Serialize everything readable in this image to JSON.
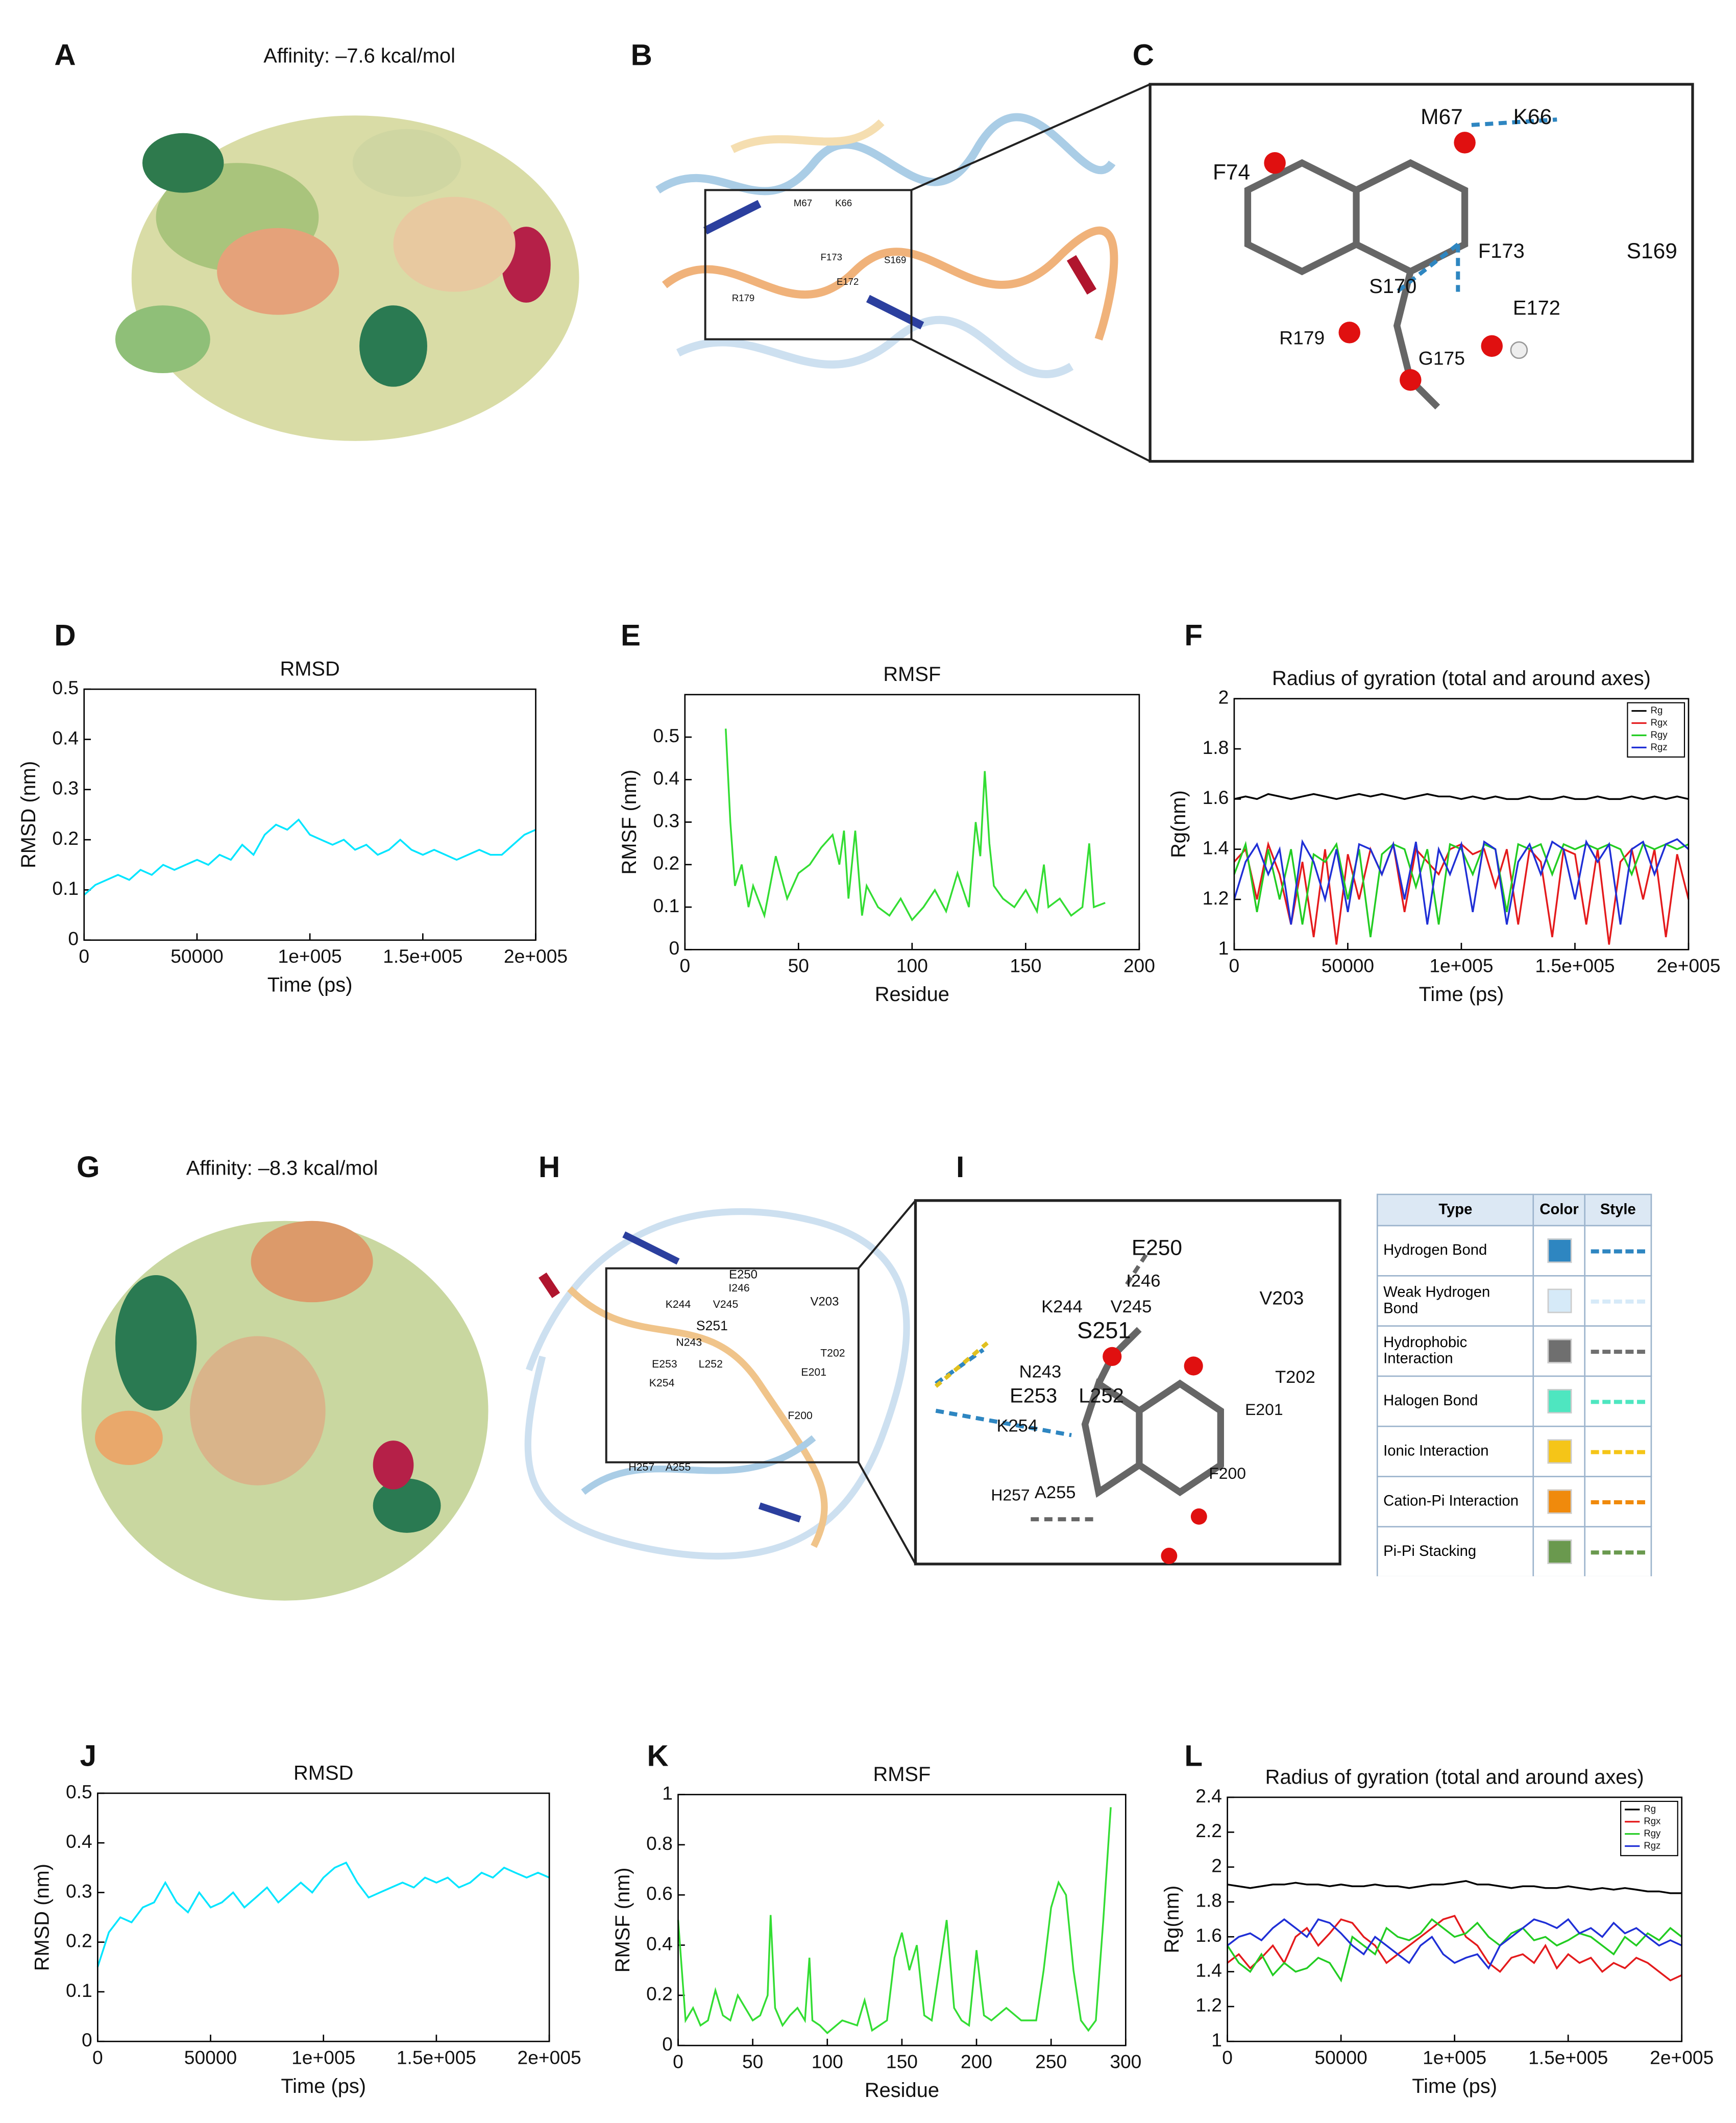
{
  "chart_data": [
    {
      "type": "line",
      "panel": "D",
      "title": "RMSD",
      "xlabel": "Time (ps)",
      "ylabel": "RMSD (nm)",
      "x": [
        0,
        5000,
        10000,
        15000,
        20000,
        25000,
        30000,
        35000,
        40000,
        45000,
        50000,
        55000,
        60000,
        65000,
        70000,
        75000,
        80000,
        85000,
        90000,
        95000,
        100000,
        105000,
        110000,
        115000,
        120000,
        125000,
        130000,
        135000,
        140000,
        145000,
        150000,
        155000,
        160000,
        165000,
        170000,
        175000,
        180000,
        185000,
        190000,
        195000,
        200000
      ],
      "xlim": [
        0,
        200000
      ],
      "xticks": [
        0,
        50000,
        {
          "value": 100000,
          "label": "1e+005"
        },
        {
          "value": 150000,
          "label": "1.5e+005"
        },
        {
          "value": 200000,
          "label": "2e+005"
        }
      ],
      "ylim": [
        0,
        0.5
      ],
      "yticks": [
        0,
        0.1,
        0.2,
        0.3,
        0.4,
        0.5
      ],
      "series": [
        {
          "color": "#00e5ff",
          "values": [
            0.09,
            0.11,
            0.12,
            0.13,
            0.12,
            0.14,
            0.13,
            0.15,
            0.14,
            0.15,
            0.16,
            0.15,
            0.17,
            0.16,
            0.19,
            0.17,
            0.21,
            0.23,
            0.22,
            0.24,
            0.21,
            0.2,
            0.19,
            0.2,
            0.18,
            0.19,
            0.17,
            0.18,
            0.2,
            0.18,
            0.17,
            0.18,
            0.17,
            0.16,
            0.17,
            0.18,
            0.17,
            0.17,
            0.19,
            0.21,
            0.22
          ]
        }
      ]
    },
    {
      "type": "line",
      "panel": "E",
      "title": "RMSF",
      "xlabel": "Residue",
      "ylabel": "RMSF (nm)",
      "x": [
        18,
        20,
        22,
        25,
        28,
        30,
        35,
        40,
        45,
        50,
        55,
        60,
        65,
        68,
        70,
        72,
        75,
        78,
        80,
        85,
        90,
        95,
        100,
        105,
        110,
        115,
        120,
        125,
        128,
        130,
        132,
        134,
        136,
        140,
        145,
        150,
        155,
        158,
        160,
        165,
        170,
        175,
        178,
        180,
        185
      ],
      "xlim": [
        0,
        200
      ],
      "xticks": [
        0,
        50,
        100,
        150,
        200
      ],
      "ylim": [
        0,
        0.6
      ],
      "yticks": [
        0,
        0.1,
        0.2,
        0.3,
        0.4,
        0.5
      ],
      "series": [
        {
          "color": "#33dd33",
          "values": [
            0.52,
            0.3,
            0.15,
            0.2,
            0.1,
            0.15,
            0.08,
            0.22,
            0.12,
            0.18,
            0.2,
            0.24,
            0.27,
            0.2,
            0.28,
            0.12,
            0.28,
            0.08,
            0.15,
            0.1,
            0.08,
            0.12,
            0.07,
            0.1,
            0.14,
            0.09,
            0.18,
            0.1,
            0.3,
            0.22,
            0.42,
            0.25,
            0.15,
            0.12,
            0.1,
            0.14,
            0.09,
            0.2,
            0.1,
            0.12,
            0.08,
            0.1,
            0.25,
            0.1,
            0.11
          ]
        }
      ]
    },
    {
      "type": "line",
      "panel": "F",
      "title": "Radius of gyration (total and around axes)",
      "xlabel": "Time (ps)",
      "ylabel": "Rg(nm)",
      "x": [
        0,
        5000,
        10000,
        15000,
        20000,
        25000,
        30000,
        35000,
        40000,
        45000,
        50000,
        55000,
        60000,
        65000,
        70000,
        75000,
        80000,
        85000,
        90000,
        95000,
        100000,
        105000,
        110000,
        115000,
        120000,
        125000,
        130000,
        135000,
        140000,
        145000,
        150000,
        155000,
        160000,
        165000,
        170000,
        175000,
        180000,
        185000,
        190000,
        195000,
        200000
      ],
      "xlim": [
        0,
        200000
      ],
      "xticks": [
        0,
        50000,
        {
          "value": 100000,
          "label": "1e+005"
        },
        {
          "value": 150000,
          "label": "1.5e+005"
        },
        {
          "value": 200000,
          "label": "2e+005"
        }
      ],
      "ylim": [
        1,
        2
      ],
      "yticks": [
        1,
        1.2,
        1.4,
        1.6,
        1.8,
        2
      ],
      "legend": "upper right",
      "series": [
        {
          "name": "Rg",
          "color": "#000000",
          "values": [
            1.6,
            1.61,
            1.6,
            1.62,
            1.61,
            1.6,
            1.61,
            1.62,
            1.61,
            1.6,
            1.61,
            1.62,
            1.61,
            1.62,
            1.61,
            1.6,
            1.61,
            1.62,
            1.61,
            1.61,
            1.6,
            1.61,
            1.6,
            1.61,
            1.6,
            1.6,
            1.61,
            1.6,
            1.6,
            1.61,
            1.6,
            1.6,
            1.61,
            1.6,
            1.6,
            1.61,
            1.6,
            1.61,
            1.6,
            1.61,
            1.6
          ]
        },
        {
          "name": "Rgx",
          "color": "#e41a1c",
          "values": [
            1.35,
            1.4,
            1.2,
            1.42,
            1.3,
            1.1,
            1.35,
            1.05,
            1.4,
            1.02,
            1.38,
            1.2,
            1.4,
            1.3,
            1.42,
            1.15,
            1.4,
            1.35,
            1.3,
            1.4,
            1.42,
            1.38,
            1.4,
            1.25,
            1.4,
            1.1,
            1.4,
            1.35,
            1.05,
            1.4,
            1.38,
            1.1,
            1.4,
            1.02,
            1.35,
            1.4,
            1.2,
            1.4,
            1.05,
            1.38,
            1.2
          ]
        },
        {
          "name": "Rgy",
          "color": "#22cc22",
          "values": [
            1.3,
            1.42,
            1.15,
            1.4,
            1.2,
            1.4,
            1.1,
            1.38,
            1.35,
            1.42,
            1.2,
            1.4,
            1.05,
            1.38,
            1.42,
            1.4,
            1.25,
            1.4,
            1.1,
            1.42,
            1.4,
            1.3,
            1.42,
            1.4,
            1.15,
            1.42,
            1.4,
            1.42,
            1.3,
            1.42,
            1.4,
            1.42,
            1.4,
            1.42,
            1.4,
            1.3,
            1.42,
            1.4,
            1.42,
            1.4,
            1.42
          ]
        },
        {
          "name": "Rgz",
          "color": "#1f2fd6",
          "values": [
            1.2,
            1.35,
            1.42,
            1.3,
            1.4,
            1.1,
            1.43,
            1.35,
            1.2,
            1.4,
            1.15,
            1.42,
            1.4,
            1.3,
            1.42,
            1.2,
            1.43,
            1.1,
            1.4,
            1.3,
            1.42,
            1.15,
            1.43,
            1.4,
            1.1,
            1.35,
            1.42,
            1.3,
            1.43,
            1.4,
            1.2,
            1.43,
            1.35,
            1.42,
            1.1,
            1.4,
            1.43,
            1.3,
            1.42,
            1.44,
            1.4
          ]
        }
      ]
    },
    {
      "type": "line",
      "panel": "J",
      "title": "RMSD",
      "xlabel": "Time (ps)",
      "ylabel": "RMSD (nm)",
      "x": [
        0,
        5000,
        10000,
        15000,
        20000,
        25000,
        30000,
        35000,
        40000,
        45000,
        50000,
        55000,
        60000,
        65000,
        70000,
        75000,
        80000,
        85000,
        90000,
        95000,
        100000,
        105000,
        110000,
        115000,
        120000,
        125000,
        130000,
        135000,
        140000,
        145000,
        150000,
        155000,
        160000,
        165000,
        170000,
        175000,
        180000,
        185000,
        190000,
        195000,
        200000
      ],
      "xlim": [
        0,
        200000
      ],
      "xticks": [
        0,
        50000,
        {
          "value": 100000,
          "label": "1e+005"
        },
        {
          "value": 150000,
          "label": "1.5e+005"
        },
        {
          "value": 200000,
          "label": "2e+005"
        }
      ],
      "ylim": [
        0,
        0.5
      ],
      "yticks": [
        0,
        0.1,
        0.2,
        0.3,
        0.4,
        0.5
      ],
      "series": [
        {
          "color": "#00e5ff",
          "values": [
            0.15,
            0.22,
            0.25,
            0.24,
            0.27,
            0.28,
            0.32,
            0.28,
            0.26,
            0.3,
            0.27,
            0.28,
            0.3,
            0.27,
            0.29,
            0.31,
            0.28,
            0.3,
            0.32,
            0.3,
            0.33,
            0.35,
            0.36,
            0.32,
            0.29,
            0.3,
            0.31,
            0.32,
            0.31,
            0.33,
            0.32,
            0.33,
            0.31,
            0.32,
            0.34,
            0.33,
            0.35,
            0.34,
            0.33,
            0.34,
            0.33
          ]
        }
      ]
    },
    {
      "type": "line",
      "panel": "K",
      "title": "RMSF",
      "xlabel": "Residue",
      "ylabel": "RMSF (nm)",
      "x": [
        0,
        5,
        10,
        15,
        20,
        25,
        30,
        35,
        40,
        45,
        50,
        55,
        60,
        62,
        65,
        70,
        75,
        80,
        85,
        88,
        90,
        95,
        100,
        110,
        120,
        125,
        130,
        140,
        145,
        150,
        155,
        160,
        165,
        170,
        175,
        180,
        185,
        190,
        195,
        200,
        205,
        210,
        220,
        230,
        240,
        245,
        250,
        255,
        260,
        265,
        270,
        275,
        280,
        285,
        290
      ],
      "xlim": [
        0,
        300
      ],
      "xticks": [
        0,
        50,
        100,
        150,
        200,
        250,
        300
      ],
      "ylim": [
        0,
        1
      ],
      "yticks": [
        0,
        0.2,
        0.4,
        0.6,
        0.8,
        1
      ],
      "series": [
        {
          "color": "#33dd33",
          "values": [
            0.5,
            0.1,
            0.15,
            0.08,
            0.1,
            0.22,
            0.12,
            0.1,
            0.2,
            0.15,
            0.1,
            0.12,
            0.2,
            0.52,
            0.15,
            0.08,
            0.12,
            0.15,
            0.1,
            0.35,
            0.1,
            0.08,
            0.05,
            0.1,
            0.08,
            0.18,
            0.06,
            0.1,
            0.35,
            0.45,
            0.3,
            0.4,
            0.12,
            0.1,
            0.3,
            0.5,
            0.15,
            0.1,
            0.08,
            0.38,
            0.12,
            0.1,
            0.15,
            0.1,
            0.1,
            0.3,
            0.55,
            0.65,
            0.6,
            0.3,
            0.1,
            0.06,
            0.1,
            0.5,
            0.95
          ]
        }
      ]
    },
    {
      "type": "line",
      "panel": "L",
      "title": "Radius of gyration (total and around axes)",
      "xlabel": "Time (ps)",
      "ylabel": "Rg(nm)",
      "x": [
        0,
        5000,
        10000,
        15000,
        20000,
        25000,
        30000,
        35000,
        40000,
        45000,
        50000,
        55000,
        60000,
        65000,
        70000,
        75000,
        80000,
        85000,
        90000,
        95000,
        100000,
        105000,
        110000,
        115000,
        120000,
        125000,
        130000,
        135000,
        140000,
        145000,
        150000,
        155000,
        160000,
        165000,
        170000,
        175000,
        180000,
        185000,
        190000,
        195000,
        200000
      ],
      "xlim": [
        0,
        200000
      ],
      "xticks": [
        0,
        50000,
        {
          "value": 100000,
          "label": "1e+005"
        },
        {
          "value": 150000,
          "label": "1.5e+005"
        },
        {
          "value": 200000,
          "label": "2e+005"
        }
      ],
      "ylim": [
        1,
        2.4
      ],
      "yticks": [
        1,
        1.2,
        1.4,
        1.6,
        1.8,
        2,
        2.2,
        2.4
      ],
      "legend": "upper right",
      "series": [
        {
          "name": "Rg",
          "color": "#000000",
          "values": [
            1.9,
            1.89,
            1.88,
            1.89,
            1.9,
            1.9,
            1.91,
            1.9,
            1.9,
            1.89,
            1.9,
            1.89,
            1.89,
            1.9,
            1.89,
            1.89,
            1.88,
            1.89,
            1.9,
            1.9,
            1.91,
            1.92,
            1.9,
            1.9,
            1.89,
            1.88,
            1.89,
            1.89,
            1.88,
            1.88,
            1.89,
            1.88,
            1.87,
            1.88,
            1.87,
            1.88,
            1.87,
            1.86,
            1.86,
            1.85,
            1.85
          ]
        },
        {
          "name": "Rgx",
          "color": "#e41a1c",
          "values": [
            1.45,
            1.5,
            1.42,
            1.48,
            1.55,
            1.45,
            1.6,
            1.65,
            1.55,
            1.62,
            1.7,
            1.68,
            1.6,
            1.55,
            1.45,
            1.5,
            1.55,
            1.6,
            1.65,
            1.7,
            1.72,
            1.6,
            1.55,
            1.45,
            1.4,
            1.48,
            1.5,
            1.45,
            1.55,
            1.42,
            1.5,
            1.45,
            1.48,
            1.4,
            1.45,
            1.42,
            1.48,
            1.45,
            1.4,
            1.35,
            1.38
          ]
        },
        {
          "name": "Rgy",
          "color": "#22cc22",
          "values": [
            1.55,
            1.45,
            1.4,
            1.5,
            1.38,
            1.45,
            1.4,
            1.42,
            1.48,
            1.45,
            1.35,
            1.6,
            1.55,
            1.5,
            1.65,
            1.6,
            1.58,
            1.62,
            1.7,
            1.65,
            1.6,
            1.62,
            1.68,
            1.6,
            1.55,
            1.62,
            1.65,
            1.58,
            1.6,
            1.55,
            1.58,
            1.62,
            1.6,
            1.55,
            1.5,
            1.6,
            1.55,
            1.62,
            1.58,
            1.65,
            1.6
          ]
        },
        {
          "name": "Rgz",
          "color": "#1f2fd6",
          "values": [
            1.55,
            1.6,
            1.62,
            1.58,
            1.65,
            1.7,
            1.65,
            1.6,
            1.7,
            1.68,
            1.62,
            1.55,
            1.5,
            1.6,
            1.55,
            1.5,
            1.45,
            1.55,
            1.6,
            1.5,
            1.45,
            1.48,
            1.5,
            1.42,
            1.55,
            1.6,
            1.65,
            1.7,
            1.68,
            1.65,
            1.7,
            1.62,
            1.65,
            1.6,
            1.68,
            1.62,
            1.65,
            1.6,
            1.55,
            1.58,
            1.55
          ]
        }
      ]
    }
  ],
  "figure": {
    "panels": [
      {
        "label": "A",
        "title": "Affinity: –7.6 kcal/mol"
      },
      {
        "label": "B",
        "residues": [
          "M67",
          "K66",
          "F173",
          "S169",
          "R179",
          "E172"
        ]
      },
      {
        "label": "C",
        "residues": [
          "M67",
          "K66",
          "F74",
          "F173",
          "S169",
          "S170",
          "E172",
          "R179",
          "G175"
        ]
      },
      {
        "label": "G",
        "title": "Affinity: –8.3 kcal/mol"
      },
      {
        "label": "H",
        "residues": [
          "E250",
          "I246",
          "V203",
          "K244",
          "V245",
          "S251",
          "N243",
          "T202",
          "E253",
          "L252",
          "K254",
          "E201",
          "F200",
          "H257",
          "A255"
        ]
      },
      {
        "label": "I",
        "residues": [
          "E250",
          "I246",
          "V203",
          "K244",
          "V245",
          "S251",
          "N243",
          "T202",
          "E253",
          "L252",
          "K254",
          "E201",
          "F200",
          "H257",
          "A255"
        ]
      }
    ],
    "interaction_table": {
      "header": [
        "Type",
        "Color",
        "Style"
      ],
      "rows": [
        {
          "type": "Hydrogen Bond",
          "color": "#2e86c1"
        },
        {
          "type": "Weak Hydrogen Bond",
          "color": "#d6eaf8"
        },
        {
          "type": "Hydrophobic Interaction",
          "color": "#6f6f6f"
        },
        {
          "type": "Halogen Bond",
          "color": "#4ee6c0"
        },
        {
          "type": "Ionic Interaction",
          "color": "#f5c518"
        },
        {
          "type": "Cation-Pi Interaction",
          "color": "#f08a0c"
        },
        {
          "type": "Pi-Pi Stacking",
          "color": "#6a994e"
        }
      ]
    }
  }
}
